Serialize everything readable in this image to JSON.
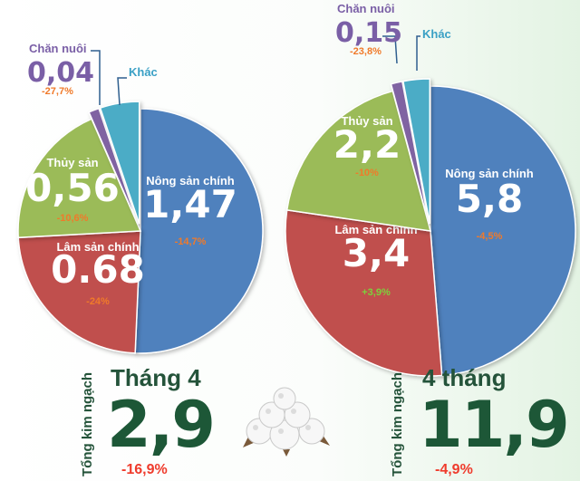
{
  "chart_data": [
    {
      "type": "pie",
      "slices": [
        {
          "label": "Nông sản chính",
          "value": 1.47,
          "value_text": "1,47",
          "change": "-14,7%",
          "color": "#4f81bd"
        },
        {
          "label": "Lâm sản chính",
          "value": 0.68,
          "value_text": "0.68",
          "change": "-24%",
          "color": "#c0504d"
        },
        {
          "label": "Thủy sản",
          "value": 0.56,
          "value_text": "0,56",
          "change": "-10,6%",
          "color": "#9bbb59"
        },
        {
          "label": "Chăn nuôi",
          "value": 0.04,
          "value_text": "0,04",
          "change": "-27,7%",
          "color": "#8064a2"
        },
        {
          "label": "Khác",
          "value": 0.15,
          "value_text": "",
          "change": "",
          "color": "#4bacc6"
        }
      ]
    },
    {
      "type": "pie",
      "slices": [
        {
          "label": "Nông sản chính",
          "value": 5.8,
          "value_text": "5,8",
          "change": "-4,5%",
          "color": "#4f81bd"
        },
        {
          "label": "Lâm sản chính",
          "value": 3.4,
          "value_text": "3,4",
          "change": "+3,9%",
          "color": "#c0504d"
        },
        {
          "label": "Thủy sản",
          "value": 2.2,
          "value_text": "2,2",
          "change": "-10%",
          "color": "#9bbb59"
        },
        {
          "label": "Chăn nuôi",
          "value": 0.15,
          "value_text": "0,15",
          "change": "-23,8%",
          "color": "#8064a2"
        },
        {
          "label": "Khác",
          "value": 0.35,
          "value_text": "",
          "change": "",
          "color": "#4bacc6"
        }
      ]
    }
  ],
  "totals": [
    {
      "vertical_label": "Tổng kim ngạch",
      "period": "Tháng 4",
      "value": "2,9",
      "change": "-16,9%"
    },
    {
      "vertical_label": "Tổng kim ngạch",
      "period": "4 tháng",
      "value": "11,9",
      "change": "-4,9%"
    }
  ],
  "colors": {
    "accent_green": "#1d5737",
    "negative": "#f07a2a",
    "positive": "#7cd13c",
    "total_negative": "#ef3b2c",
    "external_label": "#7a5fa6",
    "external_label_khac": "#3aa0c5"
  }
}
